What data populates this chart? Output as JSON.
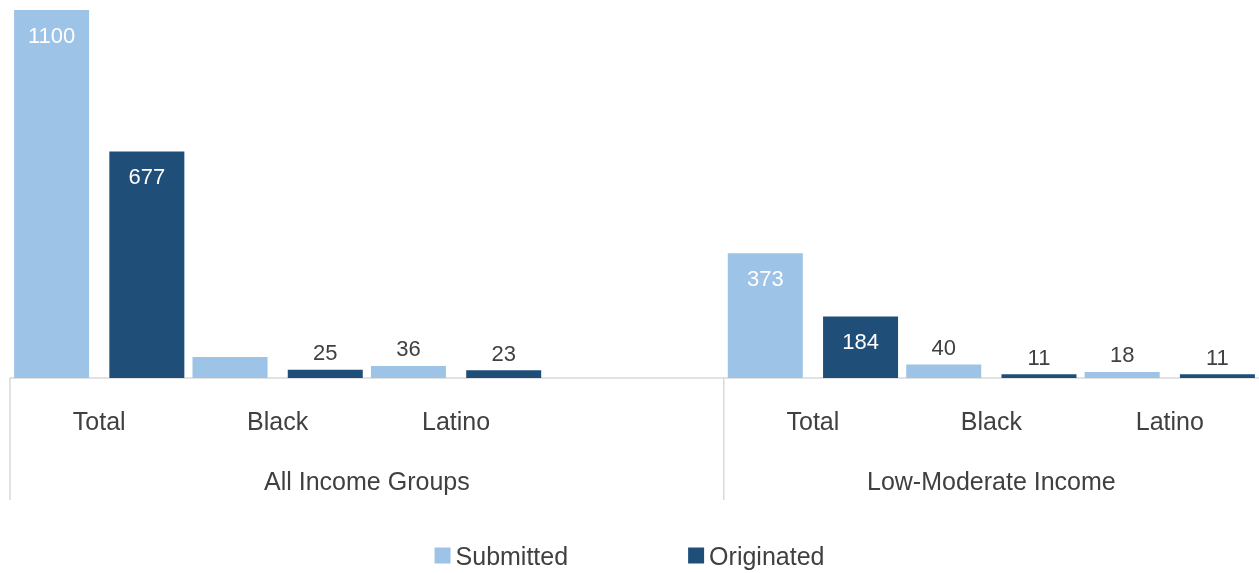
{
  "chart_data": {
    "type": "bar",
    "categories": [
      "Total",
      "Black",
      "Latino",
      null,
      "Total",
      "Black",
      "Latino"
    ],
    "series": [
      {
        "name": "Submitted",
        "color": "#9dc3e6",
        "values": [
          1100,
          63,
          36,
          null,
          373,
          40,
          18
        ],
        "value_labels": [
          "1100",
          null,
          "36",
          null,
          "373",
          "40",
          "18"
        ]
      },
      {
        "name": "Originated",
        "color": "#1f4e79",
        "values": [
          677,
          25,
          23,
          null,
          184,
          11,
          11
        ],
        "value_labels": [
          "677",
          "25",
          "23",
          null,
          "184",
          "11",
          "11"
        ]
      }
    ],
    "annotations": [
      "All Income Groups",
      "Low-Moderate Income"
    ],
    "legend": "bottom"
  }
}
